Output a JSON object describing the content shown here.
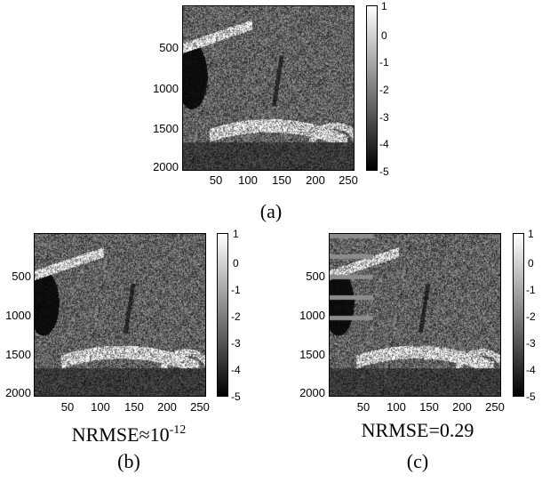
{
  "panels": [
    {
      "caption": "(a)",
      "metric": "",
      "metric_sup": "",
      "y_ticks": [
        "500",
        "1000",
        "1500",
        "2000"
      ],
      "x_ticks": [
        "50",
        "100",
        "150",
        "200",
        "250"
      ],
      "colorbar_ticks": [
        "1",
        "0",
        "-1",
        "-2",
        "-3",
        "-4",
        "-5"
      ],
      "image_variant": "reference"
    },
    {
      "caption": "(b)",
      "metric": "NRMSE≈10",
      "metric_sup": "-12",
      "y_ticks": [
        "500",
        "1000",
        "1500",
        "2000"
      ],
      "x_ticks": [
        "50",
        "100",
        "150",
        "200",
        "250"
      ],
      "colorbar_ticks": [
        "1",
        "0",
        "-1",
        "-2",
        "-3",
        "-4",
        "-5"
      ],
      "image_variant": "reconstruction"
    },
    {
      "caption": "(c)",
      "metric": "NRMSE=0.29",
      "metric_sup": "",
      "y_ticks": [
        "500",
        "1000",
        "1500",
        "2000"
      ],
      "x_ticks": [
        "50",
        "100",
        "150",
        "200",
        "250"
      ],
      "colorbar_ticks": [
        "1",
        "0",
        "-1",
        "-2",
        "-3",
        "-4",
        "-5"
      ],
      "image_variant": "noisy-reconstruction"
    }
  ],
  "image_description": "grayscale ultrasound B-mode speckle image with dark vessel on left",
  "colormap": {
    "top": "#ffffff",
    "bottom": "#000000"
  }
}
